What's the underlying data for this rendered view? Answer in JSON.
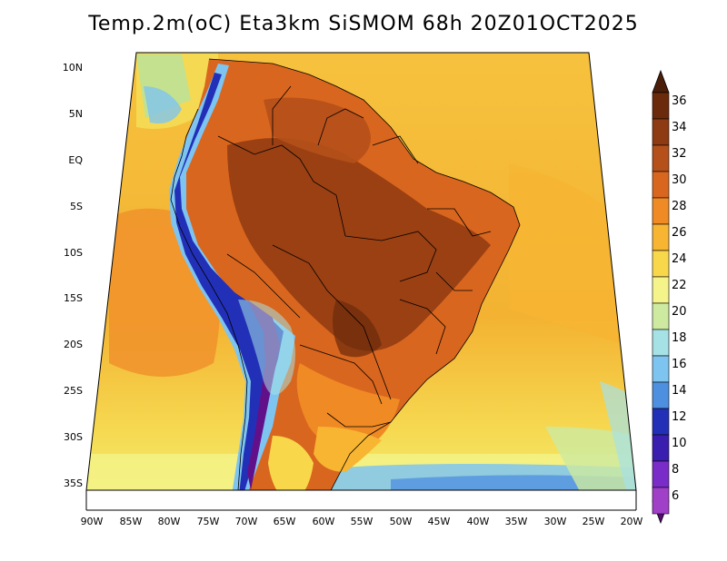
{
  "title": "Temp.2m(oC) Eta3km SiSMOM 68h 20Z01OCT2025",
  "axes": {
    "lat_labels": [
      "10N",
      "5N",
      "EQ",
      "5S",
      "10S",
      "15S",
      "20S",
      "25S",
      "30S",
      "35S"
    ],
    "lon_labels": [
      "90W",
      "85W",
      "80W",
      "75W",
      "70W",
      "65W",
      "60W",
      "55W",
      "50W",
      "45W",
      "40W",
      "35W",
      "30W",
      "25W",
      "20W"
    ]
  },
  "colorbar": {
    "labels": [
      "36",
      "34",
      "32",
      "30",
      "28",
      "26",
      "24",
      "22",
      "20",
      "18",
      "16",
      "14",
      "12",
      "10",
      "8",
      "6"
    ],
    "colors": [
      "#6b2a0c",
      "#8e3a12",
      "#b5501a",
      "#d9661e",
      "#f08a24",
      "#f7b532",
      "#f8d84a",
      "#f4f48a",
      "#cdeaa0",
      "#a6e1e6",
      "#7ec4f0",
      "#4e8fe0",
      "#2230b8",
      "#3a1eb0",
      "#7a2cc8",
      "#a040c8",
      "#62108a"
    ],
    "top_color": "#4a1e08",
    "bottom_color": "#5a0a78"
  }
}
